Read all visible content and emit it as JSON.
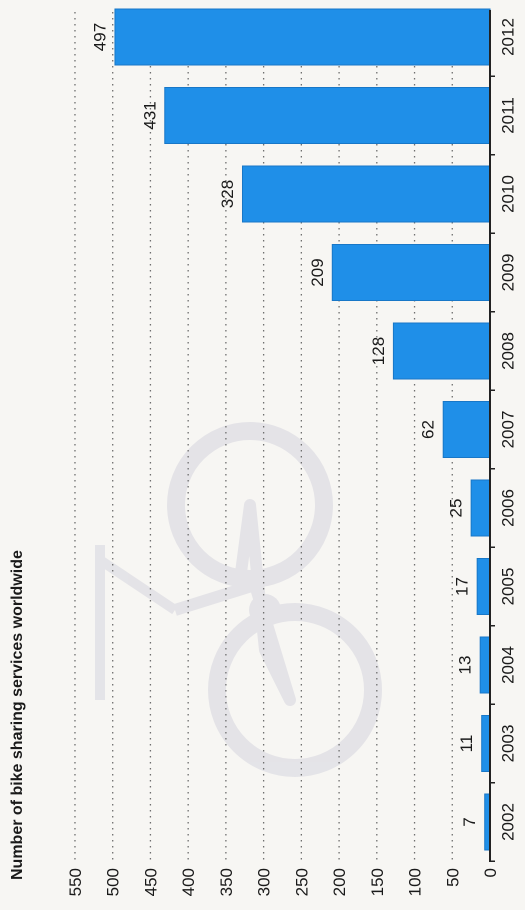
{
  "chart_data": {
    "type": "bar",
    "orientation": "horizontal",
    "title": "Number of bike sharing services worldwide",
    "categories": [
      "2002",
      "2003",
      "2004",
      "2005",
      "2006",
      "2007",
      "2008",
      "2009",
      "2010",
      "2011",
      "2012"
    ],
    "values": [
      7,
      11,
      13,
      17,
      25,
      62,
      128,
      209,
      328,
      431,
      497
    ],
    "value_labels": [
      "7",
      "11",
      "13",
      "17",
      "25",
      "62",
      "128",
      "209",
      "328",
      "431",
      "497"
    ],
    "ticks": [
      0,
      50,
      100,
      150,
      200,
      250,
      300,
      350,
      400,
      450,
      500,
      550
    ],
    "tick_labels": [
      "0",
      "50",
      "100",
      "150",
      "200",
      "250",
      "300",
      "350",
      "400",
      "450",
      "500",
      "550"
    ],
    "xlim": [
      0,
      550
    ],
    "grid": true,
    "bar_color": "#1f8fe8",
    "bar_edge_color": "#1877c7"
  }
}
